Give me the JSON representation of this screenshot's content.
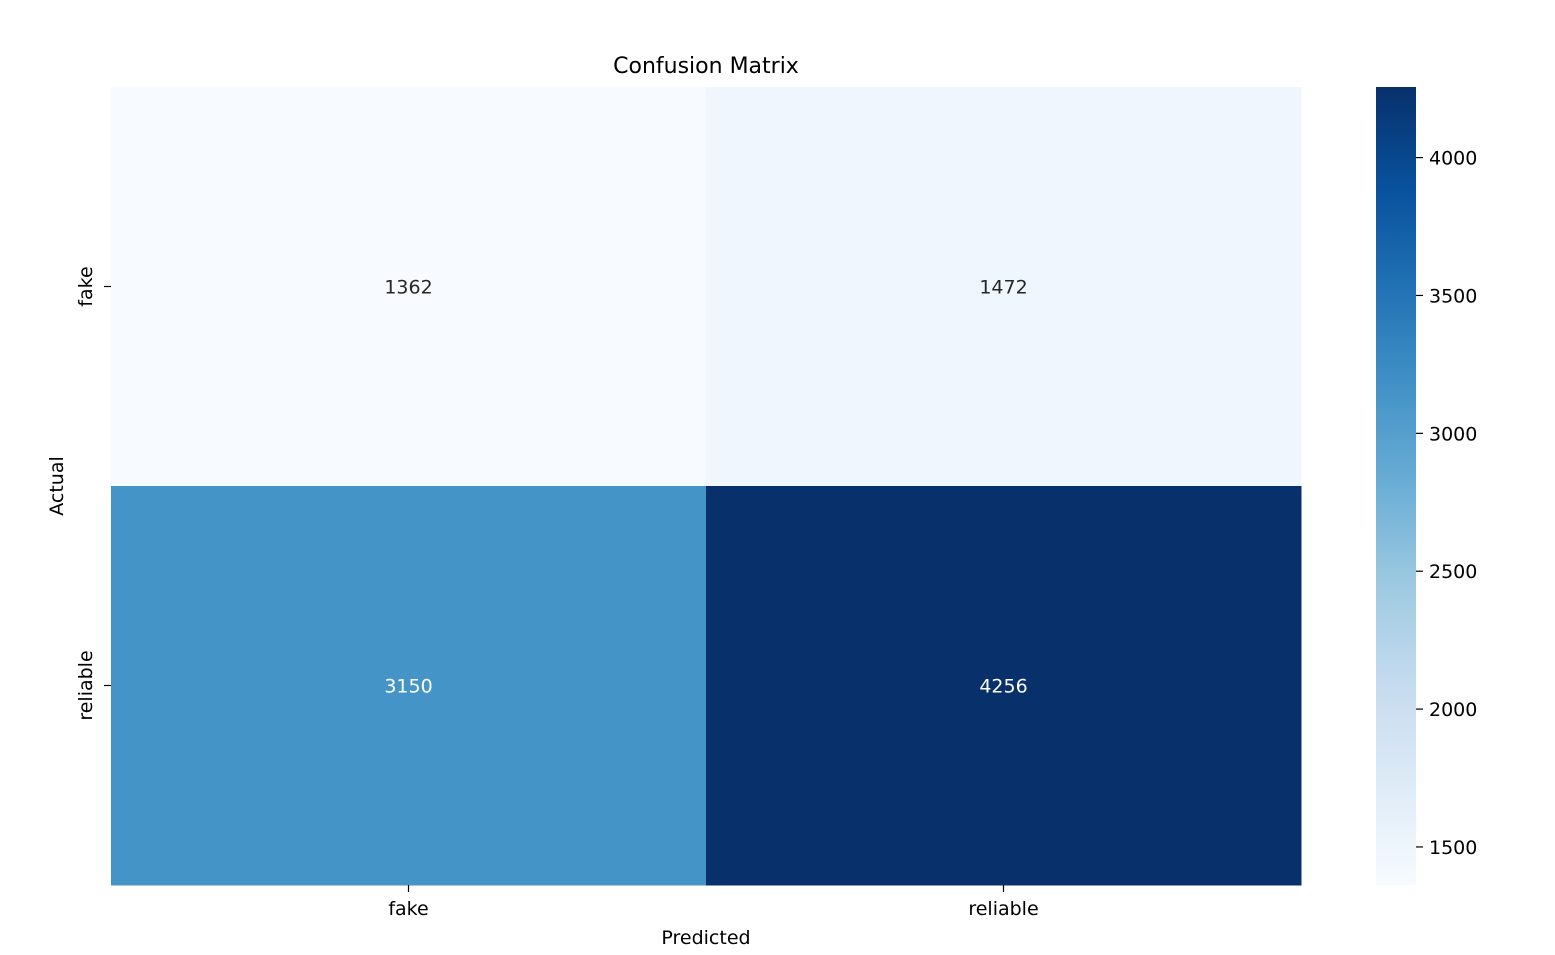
{
  "chart_data": {
    "type": "heatmap",
    "title": "Confusion Matrix",
    "xlabel": "Predicted",
    "ylabel": "Actual",
    "x_categories": [
      "fake",
      "reliable"
    ],
    "y_categories": [
      "fake",
      "reliable"
    ],
    "values": [
      [
        1362,
        1472
      ],
      [
        3150,
        4256
      ]
    ],
    "value_labels": [
      [
        "1362",
        "1472"
      ],
      [
        "3150",
        "4256"
      ]
    ],
    "colormap": "Blues",
    "colorbar": {
      "range": [
        1362,
        4256
      ],
      "ticks": [
        1500,
        2000,
        2500,
        3000,
        3500,
        4000
      ],
      "tick_labels": [
        "1500",
        "2000",
        "2500",
        "3000",
        "3500",
        "4000"
      ]
    },
    "colorbar_stops": [
      "#f7fbff",
      "#deebf7",
      "#c6dbef",
      "#9ecae1",
      "#6baed6",
      "#4292c6",
      "#2171b5",
      "#08519c",
      "#08306b"
    ]
  }
}
